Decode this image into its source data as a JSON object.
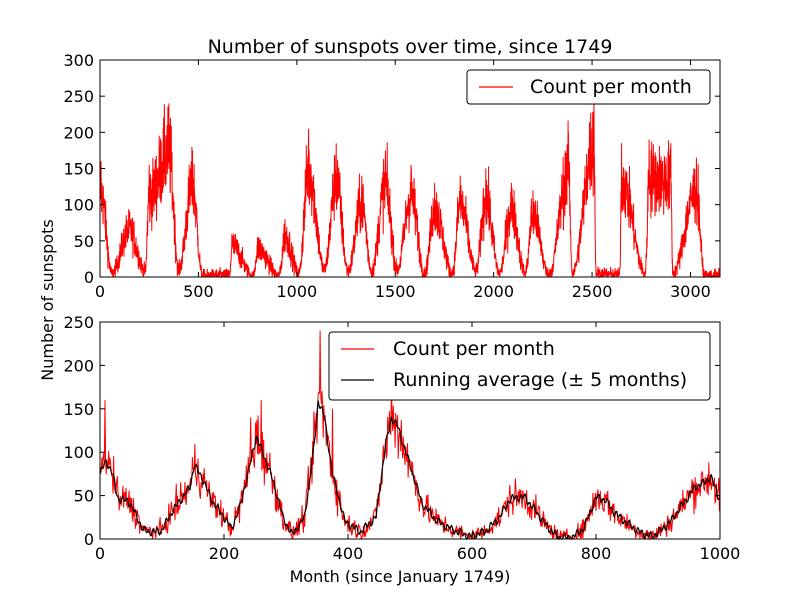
{
  "chart_data": [
    {
      "type": "line",
      "title": "Number of sunspots over time, since 1749",
      "xlabel": "",
      "ylabel": "",
      "xlim": [
        0,
        3150
      ],
      "ylim": [
        0,
        300
      ],
      "xticks": [
        0,
        500,
        1000,
        1500,
        2000,
        2500,
        3000
      ],
      "yticks": [
        0,
        50,
        100,
        150,
        200,
        250,
        300
      ],
      "legend": {
        "position": "top-right",
        "entries": [
          "Count per month"
        ]
      },
      "series": [
        {
          "name": "Count per month",
          "color": "#ff0000",
          "note": "monthly counts; cycle minima (month, count) and maxima (month, count)",
          "minima": [
            [
              60,
              5
            ],
            [
              230,
              8
            ],
            [
              400,
              10
            ],
            [
              520,
              2
            ],
            [
              660,
              3
            ],
            [
              780,
              1
            ],
            [
              910,
              2
            ],
            [
              1010,
              5
            ],
            [
              1140,
              10
            ],
            [
              1260,
              8
            ],
            [
              1380,
              8
            ],
            [
              1510,
              10
            ],
            [
              1650,
              5
            ],
            [
              1790,
              5
            ],
            [
              1910,
              8
            ],
            [
              2030,
              5
            ],
            [
              2160,
              5
            ],
            [
              2280,
              3
            ],
            [
              2400,
              5
            ],
            [
              2520,
              5
            ],
            [
              2640,
              3
            ],
            [
              2770,
              5
            ],
            [
              2910,
              5
            ],
            [
              3070,
              2
            ]
          ],
          "maxima": [
            [
              5,
              160
            ],
            [
              150,
              90
            ],
            [
              250,
              155
            ],
            [
              350,
              240
            ],
            [
              470,
              175
            ],
            [
              670,
              60
            ],
            [
              800,
              55
            ],
            [
              940,
              80
            ],
            [
              1060,
              205
            ],
            [
              1200,
              185
            ],
            [
              1330,
              140
            ],
            [
              1450,
              175
            ],
            [
              1580,
              155
            ],
            [
              1700,
              130
            ],
            [
              1830,
              140
            ],
            [
              1960,
              150
            ],
            [
              2090,
              130
            ],
            [
              2200,
              120
            ],
            [
              2380,
              200
            ],
            [
              2510,
              255
            ],
            [
              2650,
              185
            ],
            [
              2790,
              190
            ],
            [
              2900,
              185
            ],
            [
              3030,
              165
            ]
          ]
        }
      ]
    },
    {
      "type": "line",
      "title": "",
      "xlabel": "Month (since January 1749)",
      "ylabel": "",
      "xlim": [
        0,
        1000
      ],
      "ylim": [
        0,
        250
      ],
      "xticks": [
        0,
        200,
        400,
        600,
        800,
        1000
      ],
      "yticks": [
        0,
        50,
        100,
        150,
        200,
        250
      ],
      "legend": {
        "position": "top-right",
        "entries": [
          "Count per month",
          "Running average (± 5 months)"
        ]
      },
      "series": [
        {
          "name": "Running average (± 5 months)",
          "color": "#000000",
          "x": [
            0,
            10,
            20,
            30,
            45,
            60,
            70,
            85,
            100,
            115,
            130,
            145,
            152,
            165,
            180,
            200,
            212,
            225,
            240,
            252,
            265,
            280,
            295,
            310,
            330,
            345,
            352,
            362,
            375,
            395,
            420,
            445,
            460,
            470,
            480,
            500,
            520,
            545,
            570,
            595,
            620,
            645,
            660,
            670,
            685,
            700,
            720,
            740,
            760,
            780,
            800,
            815,
            830,
            850,
            870,
            890,
            905,
            920,
            940,
            960,
            975,
            985,
            1000
          ],
          "values": [
            75,
            90,
            75,
            45,
            45,
            25,
            10,
            8,
            10,
            30,
            45,
            60,
            85,
            70,
            45,
            25,
            12,
            35,
            80,
            118,
            95,
            65,
            25,
            5,
            25,
            105,
            160,
            140,
            75,
            20,
            8,
            25,
            105,
            140,
            130,
            85,
            40,
            20,
            10,
            3,
            8,
            25,
            45,
            48,
            48,
            35,
            15,
            2,
            1,
            12,
            48,
            45,
            30,
            18,
            8,
            3,
            10,
            20,
            40,
            60,
            65,
            72,
            45
          ]
        },
        {
          "name": "Count per month",
          "color": "#ff0000",
          "note": "noisy monthly counts around the running average; notable spikes (month, count)",
          "spikes": [
            [
              8,
              160
            ],
            [
              355,
              240
            ],
            [
              470,
              175
            ],
            [
              260,
              160
            ],
            [
              243,
              140
            ],
            [
              375,
              150
            ]
          ]
        }
      ]
    }
  ],
  "ylabel_shared": "Number of sunspots"
}
